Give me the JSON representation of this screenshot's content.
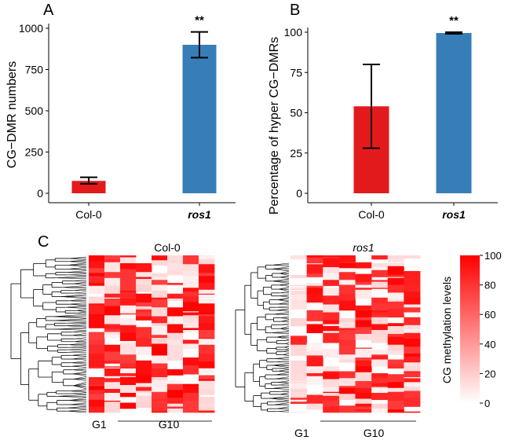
{
  "chart_data": [
    {
      "panel": "A",
      "type": "bar",
      "categories": [
        "Col-0",
        "ros1"
      ],
      "values": [
        75,
        900
      ],
      "error": [
        [
          58,
          97
        ],
        [
          822,
          978
        ]
      ],
      "annotations": [
        "",
        "**"
      ],
      "ylabel": "CG−DMR numbers",
      "ylim": [
        0,
        1000
      ],
      "yticks": [
        0,
        250,
        500,
        750,
        1000
      ],
      "colors": [
        "#e31a1c",
        "#377eb8"
      ]
    },
    {
      "panel": "B",
      "type": "bar",
      "categories": [
        "Col-0",
        "ros1"
      ],
      "values": [
        54,
        99.5
      ],
      "error": [
        [
          28,
          80
        ],
        [
          99,
          100
        ]
      ],
      "annotations": [
        "",
        "**"
      ],
      "ylabel": "Percentage of hyper CG−DMRs",
      "ylim": [
        0,
        100
      ],
      "yticks": [
        0,
        25,
        50,
        75,
        100
      ],
      "colors": [
        "#e31a1c",
        "#377eb8"
      ]
    },
    {
      "panel": "C",
      "type": "heatmap",
      "heatmaps": [
        {
          "title": "Col-0",
          "col_left_label": "G1",
          "col_group_label": "G10"
        },
        {
          "title": "ros1",
          "col_left_label": "G1",
          "col_group_label": "G10"
        }
      ],
      "colorbar": {
        "label": "CG methylation levels",
        "range": [
          0,
          100
        ],
        "ticks": [
          0,
          20,
          40,
          60,
          80,
          100
        ],
        "low_color": "#ffffff",
        "high_color": "#ff0000"
      }
    }
  ]
}
